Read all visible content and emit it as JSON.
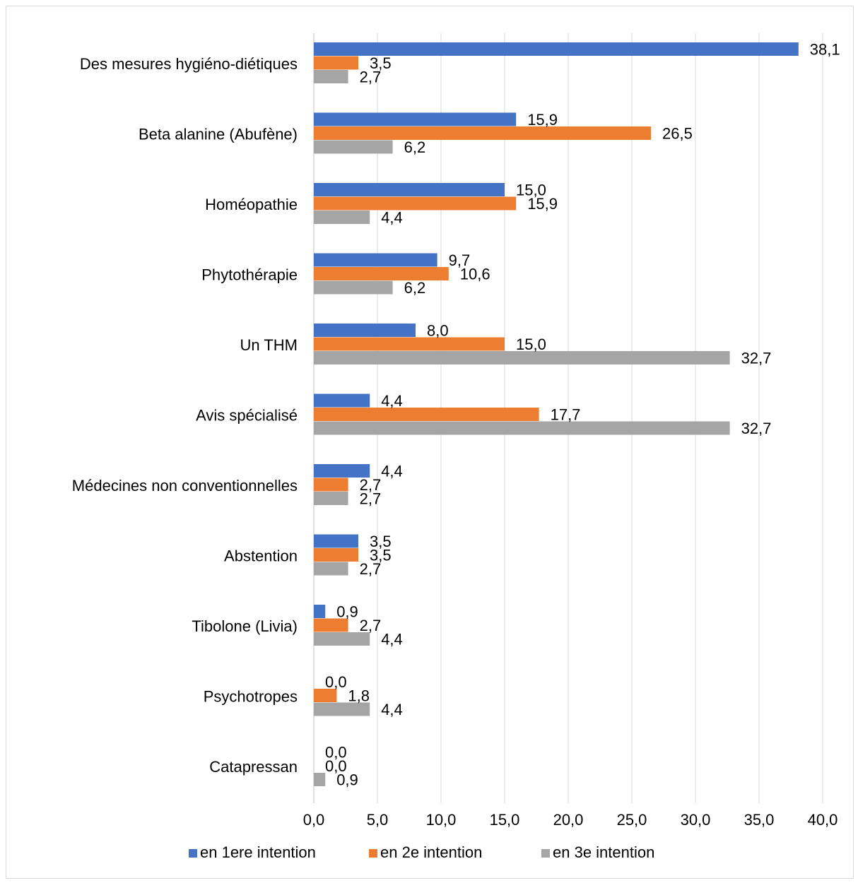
{
  "chart_data": {
    "type": "bar",
    "orientation": "horizontal",
    "title": "",
    "xlabel": "",
    "ylabel": "",
    "xlim": [
      0,
      40
    ],
    "x_ticks": [
      "0,0",
      "5,0",
      "10,0",
      "15,0",
      "20,0",
      "25,0",
      "30,0",
      "35,0",
      "40,0"
    ],
    "grid": "vertical",
    "legend_position": "bottom",
    "categories": [
      "Des mesures hygiéno-diétiques",
      "Beta alanine (Abufène)",
      "Homéopathie",
      "Phytothérapie",
      "Un THM",
      "Avis spécialisé",
      "Médecines non conventionnelles",
      "Abstention",
      "Tibolone (Livia)",
      "Psychotropes",
      "Catapressan"
    ],
    "series": [
      {
        "name": "en 1ere intention",
        "color": "#4472c4",
        "values": [
          38.1,
          15.9,
          15.0,
          9.7,
          8.0,
          4.4,
          4.4,
          3.5,
          0.9,
          0.0,
          0.0
        ],
        "labels": [
          "38,1",
          "15,9",
          "15,0",
          "9,7",
          "8,0",
          "4,4",
          "4,4",
          "3,5",
          "0,9",
          "0,0",
          "0,0"
        ]
      },
      {
        "name": "en 2e intention",
        "color": "#ed7d31",
        "values": [
          3.5,
          26.5,
          15.9,
          10.6,
          15.0,
          17.7,
          2.7,
          3.5,
          2.7,
          1.8,
          0.0
        ],
        "labels": [
          "3,5",
          "26,5",
          "15,9",
          "10,6",
          "15,0",
          "17,7",
          "2,7",
          "3,5",
          "2,7",
          "1,8",
          "0,0"
        ]
      },
      {
        "name": "en 3e intention",
        "color": "#a5a5a5",
        "values": [
          2.7,
          6.2,
          4.4,
          6.2,
          32.7,
          32.7,
          2.7,
          2.7,
          4.4,
          4.4,
          0.9
        ],
        "labels": [
          "2,7",
          "6,2",
          "4,4",
          "6,2",
          "32,7",
          "32,7",
          "2,7",
          "2,7",
          "4,4",
          "4,4",
          "0,9"
        ]
      }
    ]
  }
}
